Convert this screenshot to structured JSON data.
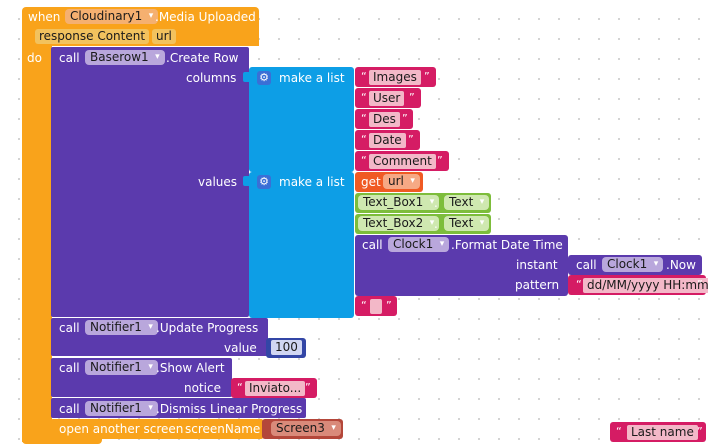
{
  "event": {
    "when": "when",
    "component": "Cloudinary1",
    "event_name": ".Media Uploaded",
    "param1": "response Content",
    "param2": "url",
    "do": "do"
  },
  "baserow": {
    "call": "call",
    "component": "Baserow1",
    "method": ".Create Row",
    "columns_label": "columns",
    "values_label": "values"
  },
  "columns_list": {
    "label": "make a list",
    "items": [
      "Images",
      "User",
      "Des",
      "Date",
      "Comment"
    ]
  },
  "values_list": {
    "label": "make a list",
    "get": "get",
    "get_var": "url",
    "textbox1": "Text_Box1",
    "textbox1_prop": "Text",
    "textbox2": "Text_Box2",
    "textbox2_prop": "Text",
    "format_call": "call",
    "format_component": "Clock1",
    "format_method": ".Format Date Time",
    "instant_label": "instant",
    "now_call": "call",
    "now_component": "Clock1",
    "now_method": ".Now",
    "pattern_label": "pattern",
    "pattern_value": "dd/MM/yyyy HH:mm",
    "empty_string": ""
  },
  "update_progress": {
    "call": "call",
    "component": "Notifier1",
    "method": ".Update Progress",
    "value_label": "value",
    "value": "100"
  },
  "show_alert": {
    "call": "call",
    "component": "Notifier1",
    "method": ".Show Alert",
    "notice_label": "notice",
    "notice_value": "Inviato..."
  },
  "dismiss": {
    "call": "call",
    "component": "Notifier1",
    "method": ".Dismiss Linear Progress"
  },
  "open_screen": {
    "label": "open another screen",
    "param_label": "screenName",
    "screen": "Screen3"
  },
  "floating": {
    "last_name": "Last name"
  },
  "colors": {
    "event": "#f9a31b",
    "procedure": "#5b3aad",
    "list": "#0d9ee6",
    "text": "#d51c64",
    "variable": "#f05a23",
    "component": "#7dbd3b",
    "math": "#3346a6",
    "screen": "#b4473a"
  }
}
